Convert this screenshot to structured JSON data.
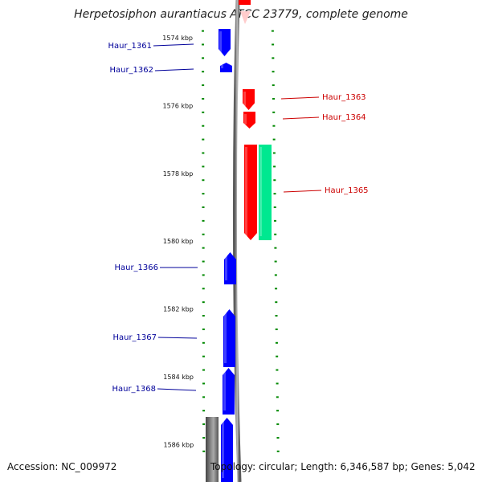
{
  "title": "Herpetosiphon aurantiacus ATCC 23779, complete genome",
  "footer": {
    "accession": "Accession: NC_009972",
    "topology": "Topology: circular; Length: 6,346,587 bp; Genes: 5,042"
  },
  "colors": {
    "forward_gene": "#0000ff",
    "reverse_gene": "#ff0000",
    "rna_gene": "#00e890",
    "forward_label": "#00009a",
    "reverse_label": "#cc0000",
    "tick": "#008800",
    "backbone": "#8a8a8a"
  },
  "scale": {
    "unit": "kbp",
    "ticks": [
      {
        "kbp": 1574,
        "label": "1574 kbp"
      },
      {
        "kbp": 1576,
        "label": "1576 kbp"
      },
      {
        "kbp": 1578,
        "label": "1578 kbp"
      },
      {
        "kbp": 1580,
        "label": "1580 kbp"
      },
      {
        "kbp": 1582,
        "label": "1582 kbp"
      },
      {
        "kbp": 1584,
        "label": "1584 kbp"
      },
      {
        "kbp": 1586,
        "label": "1586 kbp"
      }
    ]
  },
  "genes": [
    {
      "label": "Haur_1361",
      "strand": "forward"
    },
    {
      "label": "Haur_1362",
      "strand": "forward"
    },
    {
      "label": "Haur_1363",
      "strand": "reverse"
    },
    {
      "label": "Haur_1364",
      "strand": "reverse"
    },
    {
      "label": "Haur_1365",
      "strand": "reverse"
    },
    {
      "label": "Haur_1366",
      "strand": "forward"
    },
    {
      "label": "Haur_1367",
      "strand": "forward"
    },
    {
      "label": "Haur_1368",
      "strand": "forward"
    }
  ]
}
